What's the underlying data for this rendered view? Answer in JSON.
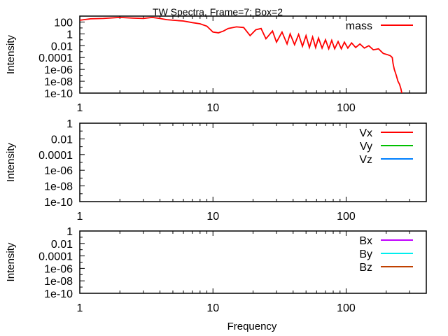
{
  "chart_data": [
    {
      "type": "line",
      "title": "TW Spectra, Frame=7; Box=2",
      "xlabel": "",
      "ylabel": "Intensity",
      "xscale": "log",
      "yscale": "log",
      "xlim": [
        1,
        400
      ],
      "ylim": [
        1e-10,
        1000
      ],
      "xticks": [
        1,
        10,
        100
      ],
      "xtick_labels": [
        "1",
        "10",
        "100"
      ],
      "yticks": [
        100,
        1,
        0.01,
        0.0001,
        1e-06,
        1e-08,
        1e-10
      ],
      "ytick_labels": [
        "100",
        "1",
        "0.01",
        "0.0001",
        "1e-06",
        "1e-08",
        "1e-10"
      ],
      "legend_position": "top-right",
      "grid": false,
      "series": [
        {
          "name": "mass",
          "color": "#ff0000",
          "x": [
            1,
            1.2,
            1.5,
            2,
            2.5,
            3,
            3.5,
            4,
            4.5,
            5,
            6,
            7,
            8,
            9,
            10,
            11,
            12,
            13,
            15,
            17,
            19,
            21,
            23,
            25,
            28,
            30,
            33,
            36,
            38,
            41,
            44,
            47,
            50,
            53,
            56,
            59,
            62,
            66,
            70,
            74,
            78,
            82,
            87,
            92,
            97,
            103,
            110,
            118,
            127,
            137,
            148,
            160,
            175,
            190,
            205,
            215,
            222,
            225,
            230,
            238,
            245,
            252,
            258,
            262
          ],
          "y": [
            200,
            350,
            400,
            600,
            450,
            400,
            600,
            400,
            250,
            200,
            150,
            80,
            50,
            20,
            2,
            1.5,
            3,
            8,
            15,
            12,
            0.5,
            5,
            8,
            0.15,
            3,
            0.04,
            2,
            0.02,
            1,
            0.015,
            0.8,
            0.008,
            0.5,
            0.005,
            0.3,
            0.005,
            0.2,
            0.004,
            0.1,
            0.003,
            0.08,
            0.003,
            0.05,
            0.003,
            0.04,
            0.004,
            0.03,
            0.005,
            0.02,
            0.004,
            0.01,
            0.002,
            0.003,
            0.0005,
            0.0003,
            0.0002,
            0.0001,
            1e-05,
            1e-06,
            1e-07,
            1e-08,
            3e-09,
            5e-10,
            1e-10
          ]
        }
      ]
    },
    {
      "type": "line",
      "title": "",
      "xlabel": "",
      "ylabel": "Intensity",
      "xscale": "log",
      "yscale": "log",
      "xlim": [
        1,
        400
      ],
      "ylim": [
        1e-10,
        1
      ],
      "xticks": [
        1,
        10,
        100
      ],
      "xtick_labels": [
        "1",
        "10",
        "100"
      ],
      "yticks": [
        1,
        0.01,
        0.0001,
        1e-06,
        1e-08,
        1e-10
      ],
      "ytick_labels": [
        "1",
        "0.01",
        "0.0001",
        "1e-06",
        "1e-08",
        "1e-10"
      ],
      "legend_position": "top-right",
      "grid": false,
      "series": [
        {
          "name": "Vx",
          "color": "#ff0000",
          "x": [],
          "y": []
        },
        {
          "name": "Vy",
          "color": "#00c000",
          "x": [],
          "y": []
        },
        {
          "name": "Vz",
          "color": "#0080ff",
          "x": [],
          "y": []
        }
      ]
    },
    {
      "type": "line",
      "title": "",
      "xlabel": "Frequency",
      "ylabel": "Intensity",
      "xscale": "log",
      "yscale": "log",
      "xlim": [
        1,
        400
      ],
      "ylim": [
        1e-10,
        1
      ],
      "xticks": [
        1,
        10,
        100
      ],
      "xtick_labels": [
        "1",
        "10",
        "100"
      ],
      "yticks": [
        1,
        0.01,
        0.0001,
        1e-06,
        1e-08,
        1e-10
      ],
      "ytick_labels": [
        "1",
        "0.01",
        "0.0001",
        "1e-06",
        "1e-08",
        "1e-10"
      ],
      "legend_position": "top-right",
      "grid": false,
      "series": [
        {
          "name": "Bx",
          "color": "#c000ff",
          "x": [],
          "y": []
        },
        {
          "name": "By",
          "color": "#00eeee",
          "x": [],
          "y": []
        },
        {
          "name": "Bz",
          "color": "#c04000",
          "x": [],
          "y": []
        }
      ]
    }
  ]
}
